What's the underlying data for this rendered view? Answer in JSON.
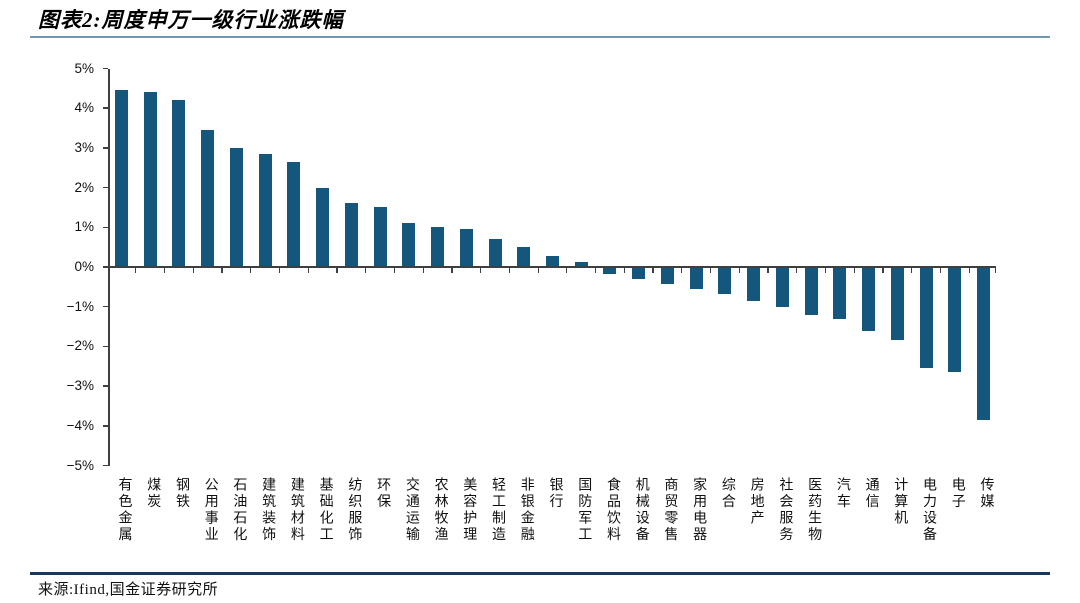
{
  "header": {
    "title": "图表2:周度申万一级行业涨跌幅"
  },
  "footer": {
    "source": "来源:Ifind,国金证券研究所"
  },
  "colors": {
    "bar": "#15567C",
    "title_rule": "#7297AF",
    "footer_rule": "#17375E",
    "axis": "#3f3f3f",
    "text": "#111111"
  },
  "chart_data": {
    "type": "bar",
    "title": "周度申万一级行业涨跌幅",
    "xlabel": "",
    "ylabel": "",
    "ylim": [
      -5,
      5
    ],
    "ytick_step": 1,
    "ytick_labels": [
      "5%",
      "4%",
      "3%",
      "2%",
      "1%",
      "0%",
      "−1%",
      "−2%",
      "−3%",
      "−4%",
      "−5%"
    ],
    "grid": false,
    "legend_position": "none",
    "categories": [
      "有色金属",
      "煤炭",
      "钢铁",
      "公用事业",
      "石油石化",
      "建筑装饰",
      "建筑材料",
      "基础化工",
      "纺织服饰",
      "环保",
      "交通运输",
      "农林牧渔",
      "美容护理",
      "轻工制造",
      "非银金融",
      "银行",
      "国防军工",
      "食品饮料",
      "机械设备",
      "商贸零售",
      "家用电器",
      "综合",
      "房地产",
      "社会服务",
      "医药生物",
      "汽车",
      "通信",
      "计算机",
      "电力设备",
      "电子",
      "传媒"
    ],
    "values": [
      4.45,
      4.4,
      4.2,
      3.45,
      3.0,
      2.85,
      2.65,
      2.0,
      1.6,
      1.5,
      1.1,
      1.0,
      0.95,
      0.7,
      0.5,
      0.28,
      0.12,
      -0.18,
      -0.3,
      -0.42,
      -0.55,
      -0.68,
      -0.85,
      -1.0,
      -1.2,
      -1.3,
      -1.6,
      -1.85,
      -2.55,
      -2.65,
      -3.85
    ]
  }
}
